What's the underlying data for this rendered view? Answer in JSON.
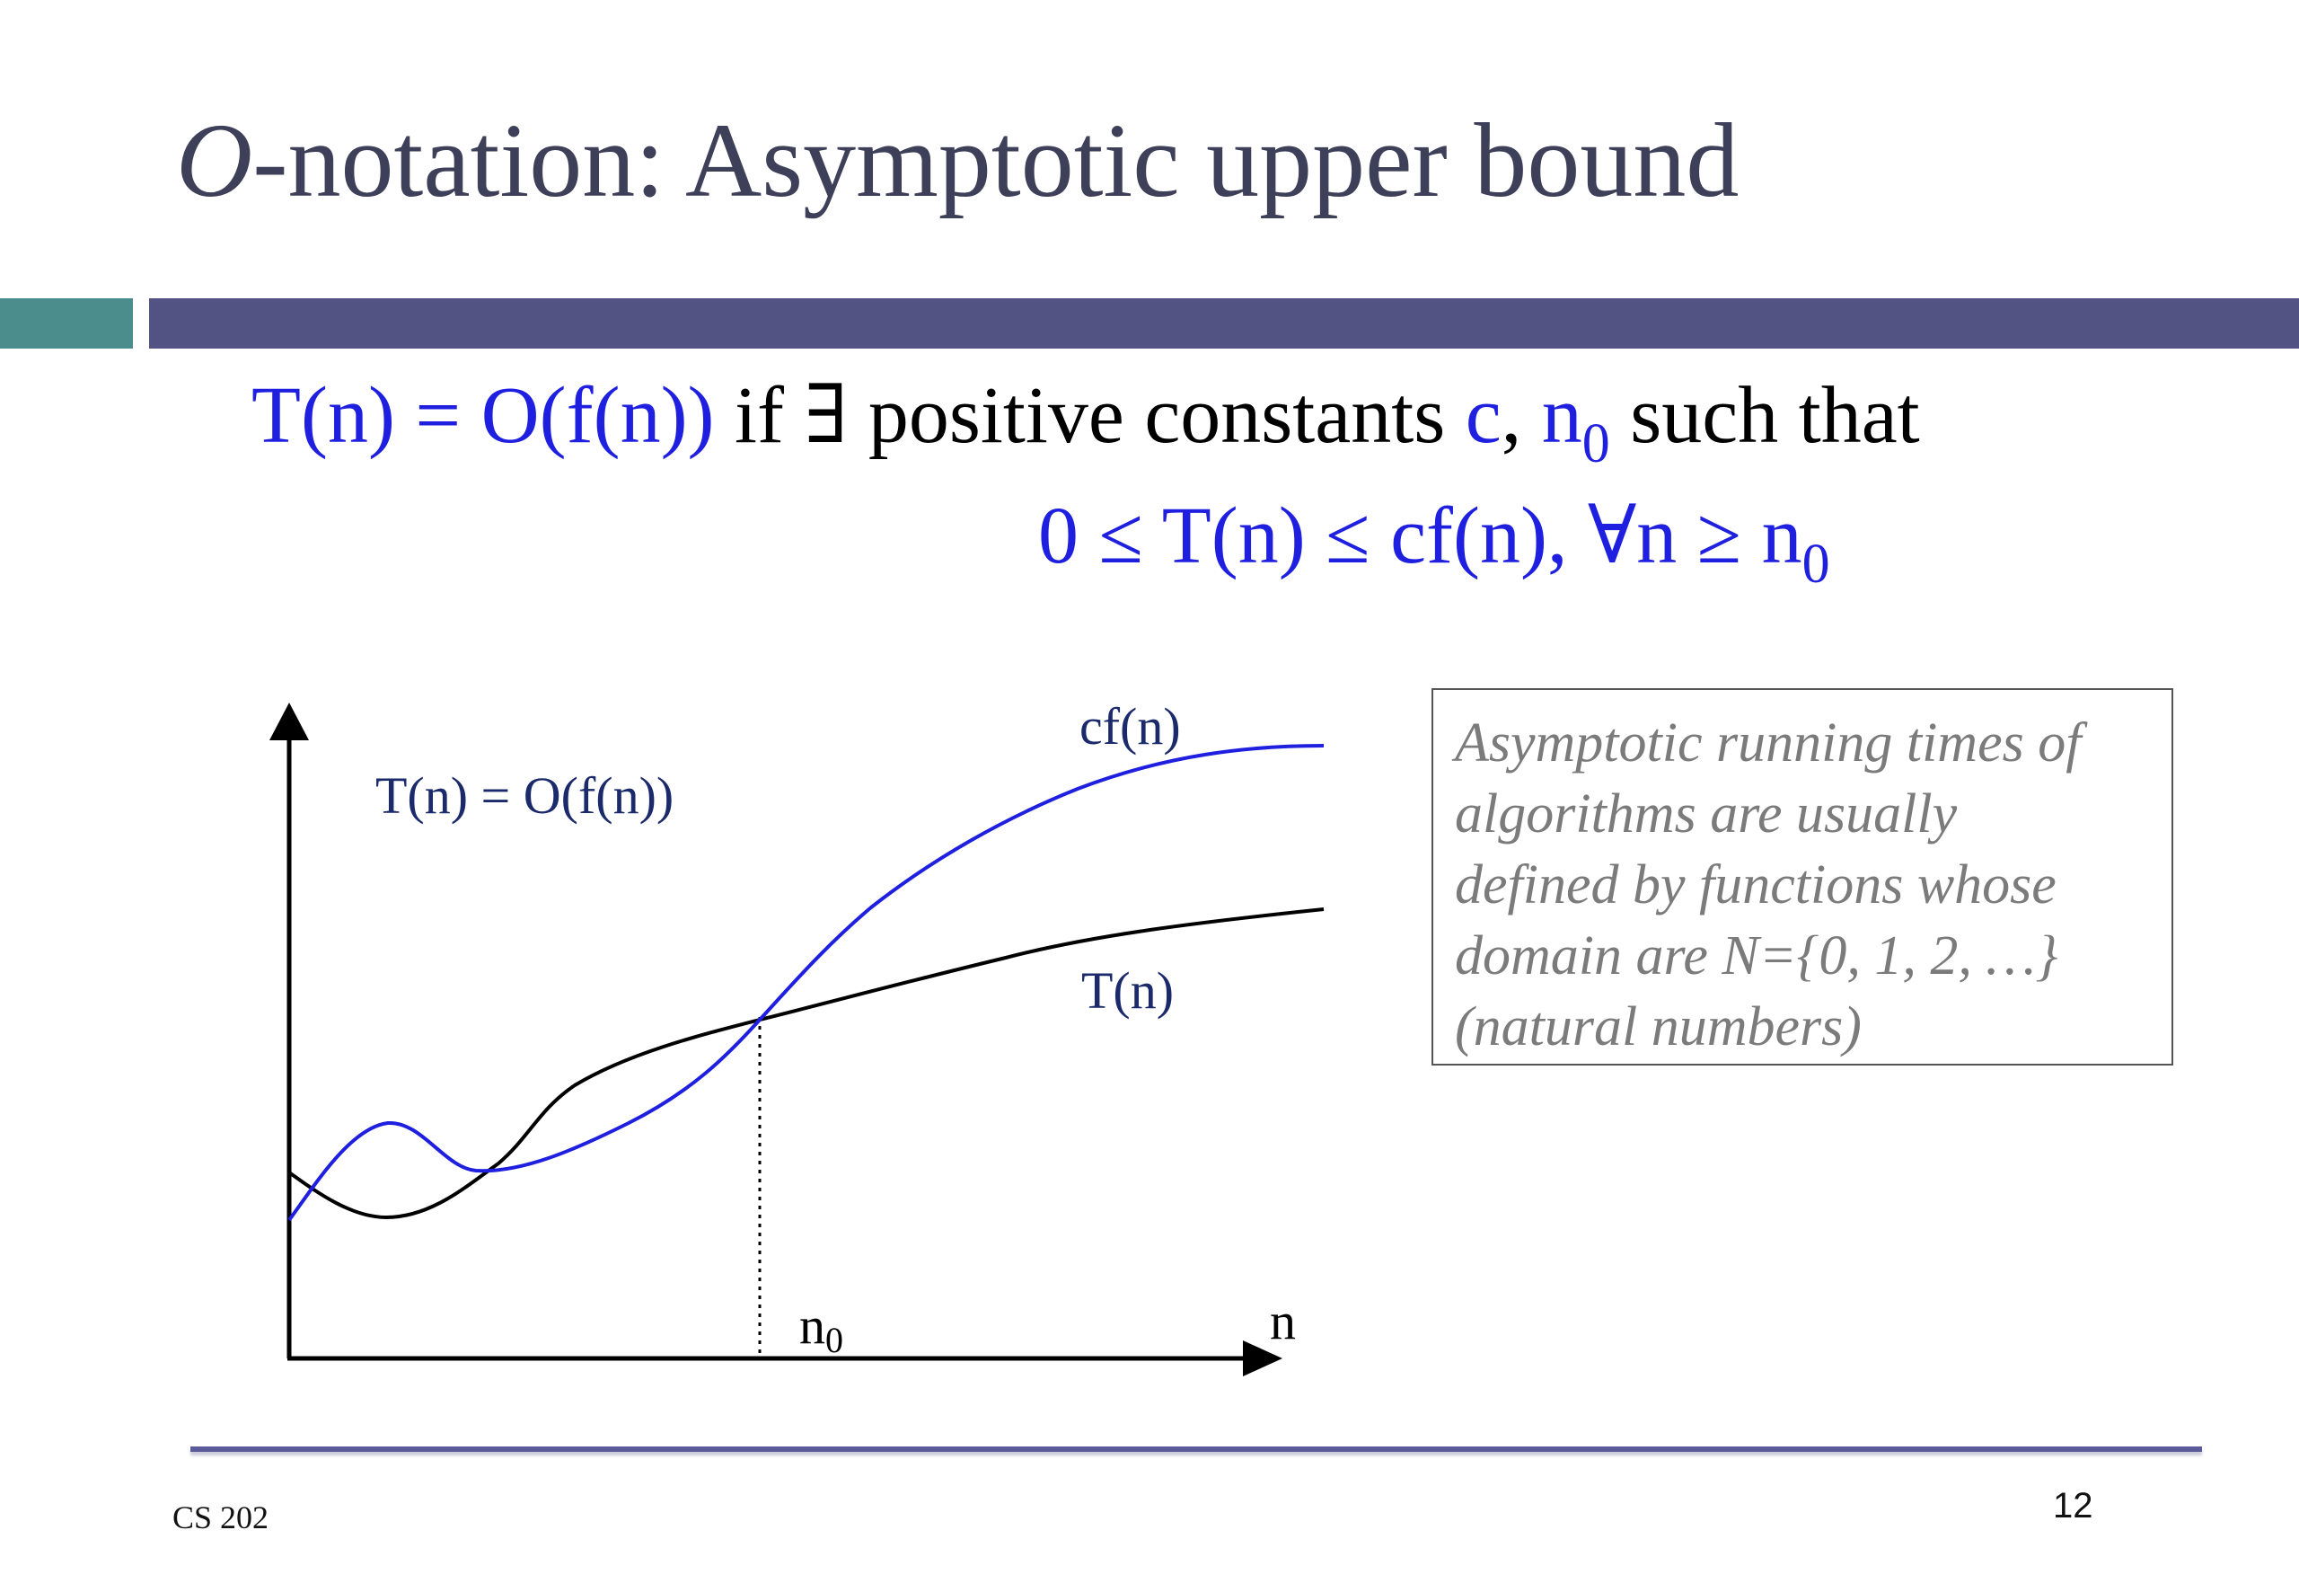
{
  "title": {
    "italic_part": "O",
    "rest": "-notation: Asymptotic upper bound"
  },
  "definition": {
    "line1": {
      "part_a": "T(n) = O(f(n))",
      "part_b": " if  ∃ positive constants ",
      "part_c": "c",
      "part_d": ", ",
      "part_e": "n",
      "part_e_sub": "0",
      "part_f": " such that"
    },
    "line2": {
      "text": "0 ≤ T(n) ≤ cf(n), ∀n ≥ n",
      "sub": "0"
    }
  },
  "diagram": {
    "label_relation": "T(n) = O(f(n))",
    "label_cf": "cf(n)",
    "label_t": "T(n)",
    "label_n0": "n",
    "label_n0_sub": "0",
    "label_n": "n",
    "colors": {
      "cf_curve": "#1f1fe0",
      "t_curve": "#000000",
      "labels": "#1a2a6a"
    }
  },
  "note": {
    "lines": [
      "Asymptotic running times of",
      "algorithms are usually",
      "defined by functions whose",
      "domain are N={0, 1, 2, …}",
      "(natural numbers)"
    ]
  },
  "footer": {
    "course": "CS 202",
    "page": "12"
  },
  "colors": {
    "title": "#3e4059",
    "accent_teal": "#4b8d8c",
    "accent_navy": "#525383",
    "highlight_blue": "#1f1fe0"
  }
}
